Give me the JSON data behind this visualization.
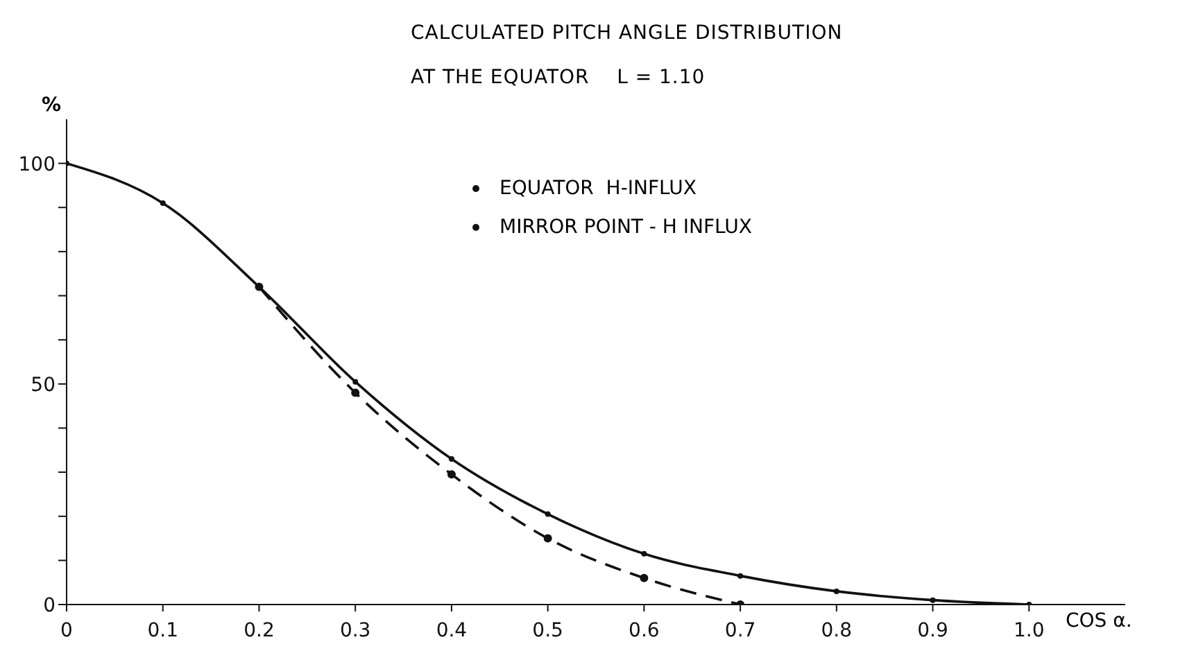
{
  "chart_data": {
    "type": "line",
    "title": "CALCULATED PITCH ANGLE DISTRIBUTION",
    "subtitle": "AT THE EQUATOR    L = 1.10",
    "xlabel": "COS α.",
    "ylabel": "%",
    "xlim": [
      0,
      1.1
    ],
    "xticks": [
      0,
      0.1,
      0.2,
      0.3,
      0.4,
      0.5,
      0.6,
      0.7,
      0.8,
      0.9,
      {
        "value": 1,
        "label": "1.0"
      }
    ],
    "ylim": [
      0,
      110
    ],
    "yticks": [
      0,
      {
        "value": 10,
        "label": null
      },
      {
        "value": 20,
        "label": null
      },
      {
        "value": 30,
        "label": null
      },
      {
        "value": 40,
        "label": null
      },
      50,
      {
        "value": 60,
        "label": null
      },
      {
        "value": 70,
        "label": null
      },
      {
        "value": 80,
        "label": null
      },
      {
        "value": 90,
        "label": null
      },
      100
    ],
    "grid": false,
    "legend": "top",
    "marker": "circle",
    "series": [
      {
        "name": "EQUATOR  H-INFLUX",
        "color": "#111111",
        "line_style": "solid",
        "x": [
          0,
          0.1,
          0.2,
          0.3,
          0.4,
          0.5,
          0.6,
          0.7,
          0.8,
          0.9,
          1.0
        ],
        "values": [
          100,
          91,
          72,
          50.5,
          33,
          20.5,
          11.5,
          6.5,
          3,
          1,
          0
        ]
      },
      {
        "name": "MIRROR POINT - H INFLUX",
        "color": "#111111",
        "line_style": "dashed",
        "x": [
          0.2,
          0.3,
          0.4,
          0.5,
          0.6,
          0.7
        ],
        "values": [
          72,
          48,
          29.5,
          15,
          6,
          0
        ]
      }
    ]
  }
}
